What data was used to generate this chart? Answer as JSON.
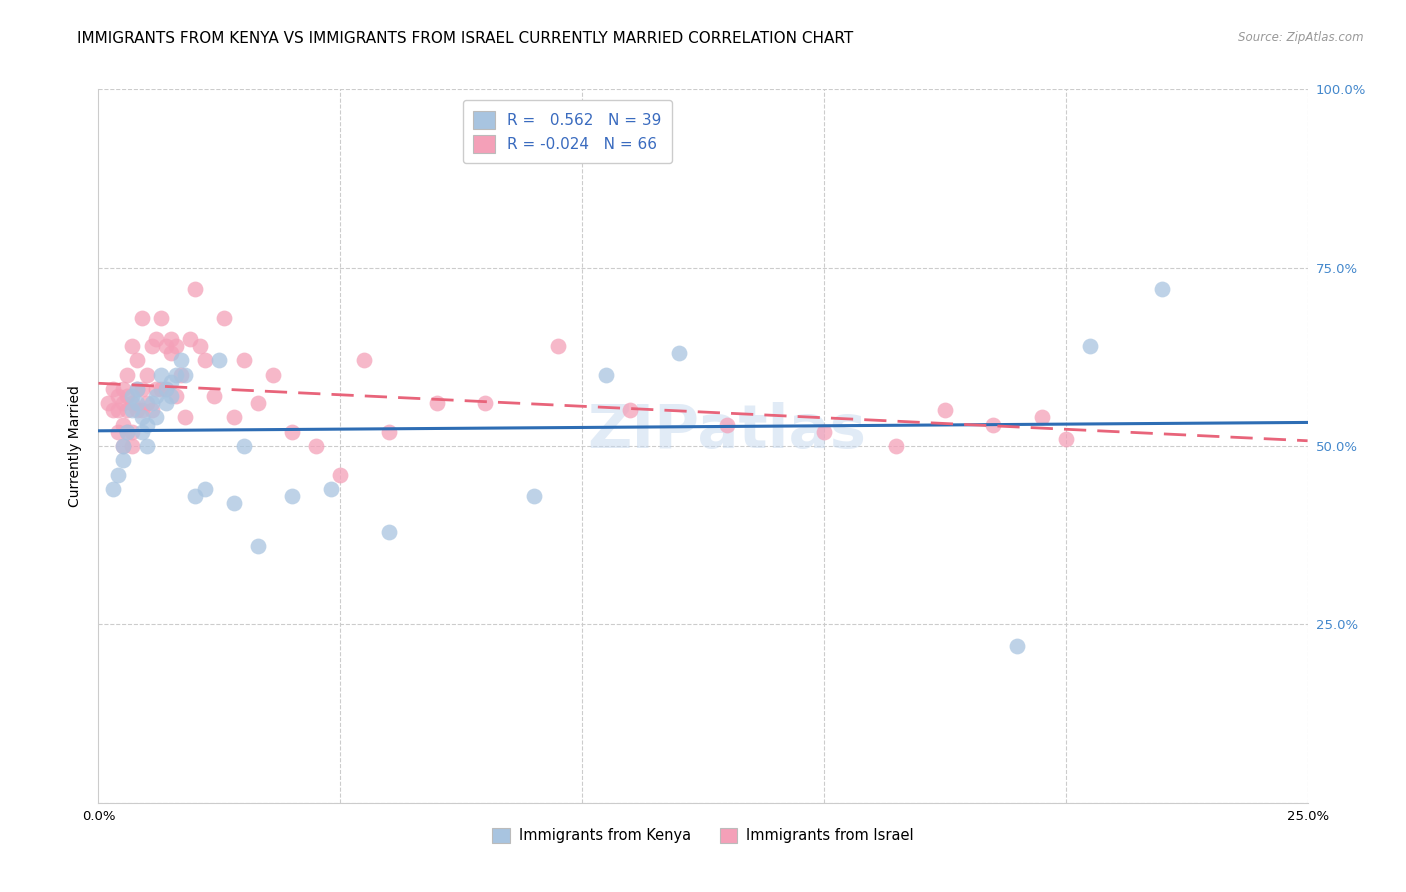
{
  "title": "IMMIGRANTS FROM KENYA VS IMMIGRANTS FROM ISRAEL CURRENTLY MARRIED CORRELATION CHART",
  "source": "Source: ZipAtlas.com",
  "ylabel": "Currently Married",
  "xlim": [
    0.0,
    0.25
  ],
  "ylim": [
    0.0,
    1.0
  ],
  "x_tick_positions": [
    0.0,
    0.05,
    0.1,
    0.15,
    0.2,
    0.25
  ],
  "x_tick_labels": [
    "0.0%",
    "",
    "",
    "",
    "",
    "25.0%"
  ],
  "y_tick_positions": [
    0.0,
    0.25,
    0.5,
    0.75,
    1.0
  ],
  "y_tick_labels_right": [
    "",
    "25.0%",
    "50.0%",
    "75.0%",
    "100.0%"
  ],
  "R_kenya": 0.562,
  "N_kenya": 39,
  "R_israel": -0.024,
  "N_israel": 66,
  "kenya_color": "#a8c4e0",
  "israel_color": "#f4a0b8",
  "kenya_line_color": "#2e6db4",
  "israel_line_color": "#e8647a",
  "watermark": "ZIPatlas",
  "kenya_points_x": [
    0.003,
    0.004,
    0.005,
    0.005,
    0.006,
    0.007,
    0.007,
    0.008,
    0.008,
    0.009,
    0.009,
    0.01,
    0.01,
    0.011,
    0.012,
    0.012,
    0.013,
    0.014,
    0.014,
    0.015,
    0.015,
    0.016,
    0.017,
    0.018,
    0.02,
    0.022,
    0.025,
    0.028,
    0.03,
    0.033,
    0.04,
    0.048,
    0.06,
    0.09,
    0.105,
    0.12,
    0.19,
    0.205,
    0.22
  ],
  "kenya_points_y": [
    0.44,
    0.46,
    0.5,
    0.48,
    0.52,
    0.55,
    0.57,
    0.56,
    0.58,
    0.54,
    0.52,
    0.5,
    0.53,
    0.56,
    0.54,
    0.57,
    0.6,
    0.58,
    0.56,
    0.57,
    0.59,
    0.6,
    0.62,
    0.6,
    0.43,
    0.44,
    0.62,
    0.42,
    0.5,
    0.36,
    0.43,
    0.44,
    0.38,
    0.43,
    0.6,
    0.63,
    0.22,
    0.64,
    0.72
  ],
  "israel_points_x": [
    0.002,
    0.003,
    0.003,
    0.004,
    0.004,
    0.004,
    0.005,
    0.005,
    0.005,
    0.005,
    0.006,
    0.006,
    0.006,
    0.006,
    0.007,
    0.007,
    0.007,
    0.007,
    0.008,
    0.008,
    0.008,
    0.009,
    0.009,
    0.009,
    0.01,
    0.01,
    0.011,
    0.011,
    0.012,
    0.012,
    0.013,
    0.013,
    0.014,
    0.014,
    0.015,
    0.015,
    0.016,
    0.016,
    0.017,
    0.018,
    0.019,
    0.02,
    0.021,
    0.022,
    0.024,
    0.026,
    0.028,
    0.03,
    0.033,
    0.036,
    0.04,
    0.045,
    0.05,
    0.055,
    0.06,
    0.07,
    0.08,
    0.095,
    0.11,
    0.13,
    0.15,
    0.165,
    0.175,
    0.185,
    0.195,
    0.2
  ],
  "israel_points_y": [
    0.56,
    0.55,
    0.58,
    0.52,
    0.55,
    0.57,
    0.5,
    0.53,
    0.56,
    0.58,
    0.52,
    0.55,
    0.57,
    0.6,
    0.5,
    0.52,
    0.56,
    0.64,
    0.55,
    0.58,
    0.62,
    0.55,
    0.58,
    0.68,
    0.56,
    0.6,
    0.55,
    0.64,
    0.58,
    0.65,
    0.58,
    0.68,
    0.58,
    0.64,
    0.65,
    0.63,
    0.57,
    0.64,
    0.6,
    0.54,
    0.65,
    0.72,
    0.64,
    0.62,
    0.57,
    0.68,
    0.54,
    0.62,
    0.56,
    0.6,
    0.52,
    0.5,
    0.46,
    0.62,
    0.52,
    0.56,
    0.56,
    0.64,
    0.55,
    0.53,
    0.52,
    0.5,
    0.55,
    0.53,
    0.54,
    0.51
  ],
  "grid_color": "#cccccc",
  "background_color": "#ffffff",
  "title_fontsize": 11,
  "axis_label_fontsize": 10,
  "tick_fontsize": 9.5,
  "legend_fontsize": 11,
  "right_tick_color": "#4488cc"
}
